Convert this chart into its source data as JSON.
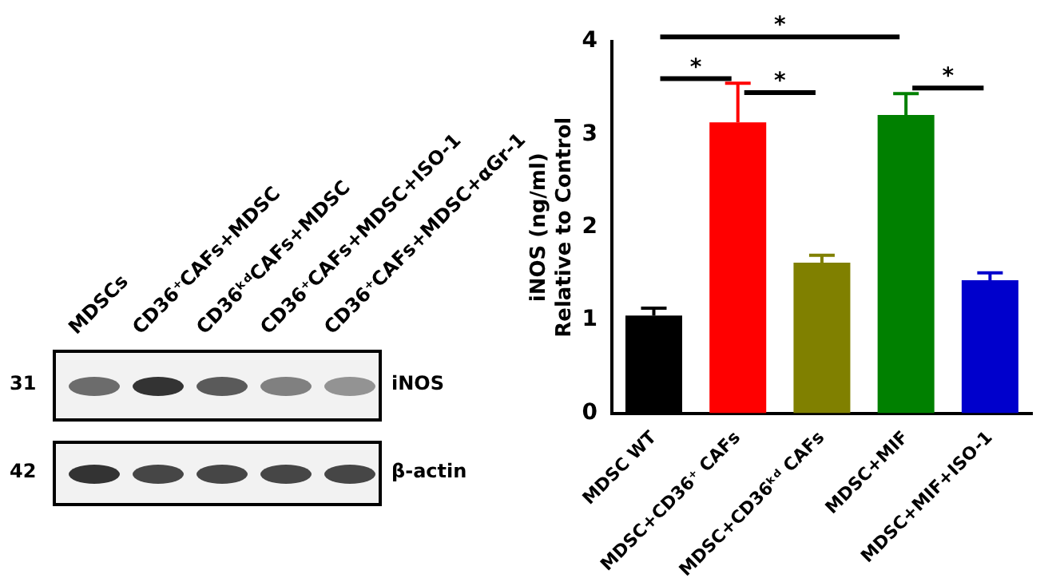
{
  "chart_data": {
    "type": "bar",
    "ylabel": "iNOS (ng/ml)\nRelative to Control",
    "categories": [
      "MDSC WT",
      "MDSC+CD36⁺ CAFs",
      "MDSC+CD36ᵏᵈ CAFs",
      "MDSC+MIF",
      "MDSC+MIF+ISO-1"
    ],
    "values": [
      1.05,
      3.13,
      1.62,
      3.21,
      1.43
    ],
    "errors": [
      0.08,
      0.42,
      0.08,
      0.23,
      0.08
    ],
    "colors": [
      "#000000",
      "#ff0000",
      "#808000",
      "#008000",
      "#0000cc"
    ],
    "ylim": [
      0,
      4
    ],
    "yticks": [
      0,
      1,
      2,
      3,
      4
    ],
    "grid": false,
    "legend": false,
    "annotations": [
      "MDSCs",
      "CD36⁺CAFs+MDSC",
      "CD36ᵏᵈCAFs+MDSC",
      "CD36⁺CAFs+MDSC+ISO-1",
      "CD36⁺CAFs+MDSC+αGr-1",
      "iNOS",
      "β-actin",
      "31",
      "42",
      "*",
      "*",
      "*",
      "*"
    ]
  }
}
